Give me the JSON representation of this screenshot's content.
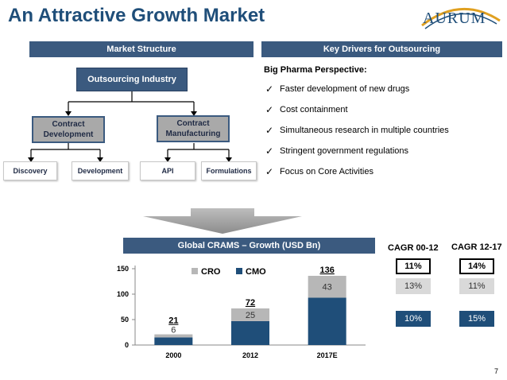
{
  "title": "An Attractive Growth Market",
  "logo_text": "AURUM",
  "left_band": "Market Structure",
  "right_band": "Key Drivers for Outsourcing",
  "tree": {
    "root": "Outsourcing Industry",
    "branch_left": "Contract Development",
    "branch_right": "Contract Manufacturing",
    "leaves": [
      "Discovery",
      "Development",
      "API",
      "Formulations"
    ]
  },
  "key_drivers": {
    "heading": "Big Pharma Perspective:",
    "items": [
      "Faster development of new drugs",
      "Cost containment",
      "Simultaneous research in multiple countries",
      "Stringent government regulations",
      "Focus on Core Activities"
    ]
  },
  "chart_band": "Global CRAMS – Growth (USD Bn)",
  "chart_data": {
    "type": "bar",
    "stacked": true,
    "categories": [
      "2000",
      "2012",
      "2017E"
    ],
    "series": [
      {
        "name": "CMO",
        "values": [
          15,
          47,
          93
        ],
        "color": "#1f4e79"
      },
      {
        "name": "CRO",
        "values": [
          6,
          25,
          43
        ],
        "color": "#b7b7b7"
      }
    ],
    "totals": [
      21,
      72,
      136
    ],
    "cro_labels": [
      "6",
      "25",
      "43"
    ],
    "yticks": [
      0,
      50,
      100,
      150
    ],
    "ylim": [
      0,
      150
    ],
    "legend": [
      "CRO",
      "CMO"
    ],
    "legend_position": "top-center",
    "grid": false
  },
  "cagr": {
    "col1_head": "CAGR 00-12",
    "col2_head": "CAGR 12-17",
    "total": [
      "11%",
      "14%"
    ],
    "cro": [
      "13%",
      "11%"
    ],
    "cmo": [
      "10%",
      "15%"
    ]
  },
  "page_number": "7"
}
